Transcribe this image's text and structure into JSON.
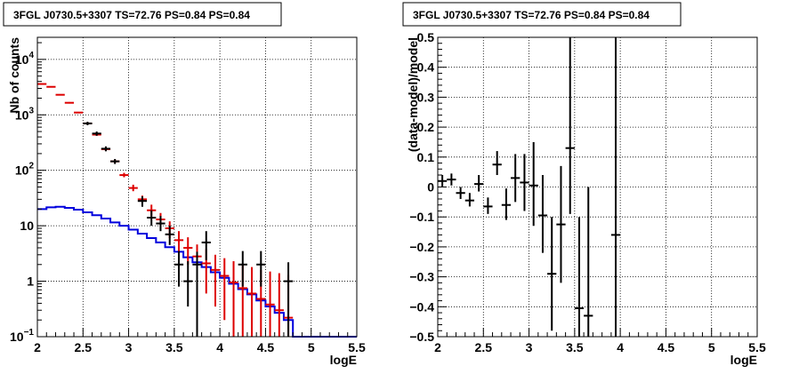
{
  "chart_data": [
    {
      "type": "scatter",
      "title": "3FGL J0730.5+3307 TS=72.76 PS=0.84 PS=0.84",
      "xlabel": "logE",
      "ylabel": "Nb of counts",
      "xlim": [
        2,
        5.5
      ],
      "ylim": [
        0.1,
        25000
      ],
      "log_y": true,
      "grid": true,
      "x_ticks": [
        "2",
        "2.5",
        "3",
        "3.5",
        "4",
        "4.5",
        "5",
        "5.5"
      ],
      "y_ticks": [
        {
          "base": "10",
          "exp": "−1"
        },
        {
          "base": "1",
          "exp": ""
        },
        {
          "base": "10",
          "exp": ""
        },
        {
          "base": "10",
          "exp": "2"
        },
        {
          "base": "10",
          "exp": "3"
        },
        {
          "base": "10",
          "exp": "4"
        }
      ],
      "colors": {
        "data": "#000000",
        "model_total": "#dd0000",
        "model_component": "#0000dd"
      },
      "series": [
        {
          "style": "data-errorbars",
          "color": "#000000",
          "points": [
            {
              "x": 2.55,
              "y": 700,
              "lo": 650,
              "hi": 750
            },
            {
              "x": 2.65,
              "y": 460,
              "lo": 420,
              "hi": 500
            },
            {
              "x": 2.75,
              "y": 245,
              "lo": 220,
              "hi": 270
            },
            {
              "x": 2.85,
              "y": 145,
              "lo": 130,
              "hi": 160
            },
            {
              "x": 3.15,
              "y": 28,
              "lo": 22,
              "hi": 34
            },
            {
              "x": 3.25,
              "y": 14,
              "lo": 10,
              "hi": 19
            },
            {
              "x": 3.35,
              "y": 11,
              "lo": 8,
              "hi": 15
            },
            {
              "x": 3.45,
              "y": 7,
              "lo": 4.5,
              "hi": 10
            },
            {
              "x": 3.55,
              "y": 2.0,
              "lo": 0.8,
              "hi": 3.5
            },
            {
              "x": 3.65,
              "y": 1.0,
              "lo": 0.35,
              "hi": 2.3
            },
            {
              "x": 3.75,
              "y": 2.0,
              "lo": 0.1,
              "hi": 3.4
            },
            {
              "x": 3.85,
              "y": 5.0,
              "lo": 2.4,
              "hi": 8.0
            },
            {
              "x": 4.25,
              "y": 2.0,
              "lo": 0.8,
              "hi": 3.5
            },
            {
              "x": 4.45,
              "y": 2.0,
              "lo": 0.8,
              "hi": 3.5
            },
            {
              "x": 4.75,
              "y": 1.0,
              "lo": 0.1,
              "hi": 2.2
            }
          ]
        },
        {
          "style": "model-errorbars",
          "color": "#dd0000",
          "points": [
            {
              "x": 2.05,
              "y": 3600,
              "lo": 3550,
              "hi": 3650
            },
            {
              "x": 2.15,
              "y": 3200,
              "lo": 3150,
              "hi": 3250
            },
            {
              "x": 2.25,
              "y": 2300,
              "lo": 2250,
              "hi": 2350
            },
            {
              "x": 2.35,
              "y": 1650,
              "lo": 1600,
              "hi": 1700
            },
            {
              "x": 2.45,
              "y": 1100,
              "lo": 1070,
              "hi": 1130
            },
            {
              "x": 2.55,
              "y": 700,
              "lo": 680,
              "hi": 720
            },
            {
              "x": 2.65,
              "y": 440,
              "lo": 420,
              "hi": 460
            },
            {
              "x": 2.75,
              "y": 240,
              "lo": 225,
              "hi": 255
            },
            {
              "x": 2.85,
              "y": 145,
              "lo": 135,
              "hi": 155
            },
            {
              "x": 2.95,
              "y": 82,
              "lo": 75,
              "hi": 90
            },
            {
              "x": 3.05,
              "y": 48,
              "lo": 42,
              "hi": 55
            },
            {
              "x": 3.15,
              "y": 30,
              "lo": 25,
              "hi": 35
            },
            {
              "x": 3.25,
              "y": 19,
              "lo": 15,
              "hi": 24
            },
            {
              "x": 3.35,
              "y": 13,
              "lo": 9.5,
              "hi": 17
            },
            {
              "x": 3.45,
              "y": 9,
              "lo": 6,
              "hi": 12
            },
            {
              "x": 3.55,
              "y": 5.5,
              "lo": 3.2,
              "hi": 8
            },
            {
              "x": 3.65,
              "y": 4.0,
              "lo": 2.0,
              "hi": 6.2
            },
            {
              "x": 3.75,
              "y": 2.8,
              "lo": 1.1,
              "hi": 4.6
            },
            {
              "x": 3.85,
              "y": 2.1,
              "lo": 0.6,
              "hi": 3.8
            },
            {
              "x": 3.95,
              "y": 1.6,
              "lo": 0.35,
              "hi": 3.0
            },
            {
              "x": 4.05,
              "y": 1.25,
              "lo": 0.2,
              "hi": 2.6
            },
            {
              "x": 4.15,
              "y": 0.95,
              "lo": 0.1,
              "hi": 2.3
            },
            {
              "x": 4.25,
              "y": 0.75,
              "lo": 0.1,
              "hi": 2.0
            },
            {
              "x": 4.35,
              "y": 0.6,
              "lo": 0.1,
              "hi": 1.8
            },
            {
              "x": 4.45,
              "y": 0.48,
              "lo": 0.1,
              "hi": 1.6
            },
            {
              "x": 4.55,
              "y": 0.38,
              "lo": 0.1,
              "hi": 1.5
            },
            {
              "x": 4.65,
              "y": 0.3,
              "lo": 0.1,
              "hi": 1.4
            },
            {
              "x": 4.75,
              "y": 0.22,
              "lo": 0.1,
              "hi": 1.3
            }
          ]
        },
        {
          "style": "step",
          "color": "#0000dd",
          "bin_width": 0.1,
          "x": [
            2.0,
            2.1,
            2.2,
            2.3,
            2.4,
            2.5,
            2.6,
            2.7,
            2.8,
            2.9,
            3.0,
            3.1,
            3.2,
            3.3,
            3.4,
            3.5,
            3.6,
            3.7,
            3.8,
            3.9,
            4.0,
            4.1,
            4.2,
            4.3,
            4.4,
            4.5,
            4.6,
            4.7,
            4.8,
            4.9,
            5.0,
            5.1,
            5.2,
            5.3,
            5.4
          ],
          "y": [
            20,
            21.5,
            22,
            21,
            19.5,
            17.5,
            15.5,
            13.5,
            11.5,
            10,
            8.5,
            7.2,
            6.0,
            5.0,
            4.1,
            3.4,
            2.7,
            2.2,
            1.8,
            1.45,
            1.15,
            0.9,
            0.72,
            0.58,
            0.45,
            0.35,
            0.27,
            0.2,
            0.1,
            0.1,
            0.1,
            0.1,
            0.1,
            0.1,
            0.1
          ]
        }
      ]
    },
    {
      "type": "scatter",
      "title": "3FGL J0730.5+3307 TS=72.76 PS=0.84 PS=0.84",
      "xlabel": "logE",
      "ylabel": "(data-model)/model",
      "xlim": [
        2,
        5.5
      ],
      "ylim": [
        -0.5,
        0.5
      ],
      "log_y": false,
      "grid": true,
      "x_ticks": [
        "2",
        "2.5",
        "3",
        "3.5",
        "4",
        "4.5",
        "5",
        "5.5"
      ],
      "y_ticks": [
        "−0.5",
        "−0.4",
        "−0.3",
        "−0.2",
        "−0.1",
        "0",
        "0.1",
        "0.2",
        "0.3",
        "0.4",
        "0.5"
      ],
      "series": [
        {
          "style": "residual-errorbars",
          "color": "#000000",
          "points": [
            {
              "x": 2.05,
              "y": 0.02,
              "lo": 0.0,
              "hi": 0.04
            },
            {
              "x": 2.15,
              "y": 0.025,
              "lo": 0.005,
              "hi": 0.045
            },
            {
              "x": 2.25,
              "y": -0.02,
              "lo": -0.04,
              "hi": 0.0
            },
            {
              "x": 2.35,
              "y": -0.045,
              "lo": -0.065,
              "hi": -0.02
            },
            {
              "x": 2.45,
              "y": 0.01,
              "lo": -0.015,
              "hi": 0.04
            },
            {
              "x": 2.55,
              "y": -0.065,
              "lo": -0.09,
              "hi": -0.035
            },
            {
              "x": 2.65,
              "y": 0.075,
              "lo": 0.04,
              "hi": 0.12
            },
            {
              "x": 2.75,
              "y": -0.06,
              "lo": -0.11,
              "hi": -0.005
            },
            {
              "x": 2.85,
              "y": 0.03,
              "lo": -0.05,
              "hi": 0.11
            },
            {
              "x": 2.95,
              "y": 0.015,
              "lo": -0.08,
              "hi": 0.11
            },
            {
              "x": 3.05,
              "y": 0.005,
              "lo": -0.13,
              "hi": 0.15
            },
            {
              "x": 3.15,
              "y": -0.095,
              "lo": -0.22,
              "hi": 0.04
            },
            {
              "x": 3.25,
              "y": -0.29,
              "lo": -0.48,
              "hi": -0.1
            },
            {
              "x": 3.35,
              "y": -0.125,
              "lo": -0.32,
              "hi": 0.07
            },
            {
              "x": 3.45,
              "y": 0.13,
              "lo": -0.09,
              "hi": 0.5
            },
            {
              "x": 3.55,
              "y": -0.405,
              "lo": -0.5,
              "hi": -0.1
            },
            {
              "x": 3.65,
              "y": -0.43,
              "lo": -0.5,
              "hi": -0.0
            },
            {
              "x": 3.95,
              "y": -0.16,
              "lo": -0.5,
              "hi": 0.5
            }
          ]
        }
      ]
    }
  ]
}
